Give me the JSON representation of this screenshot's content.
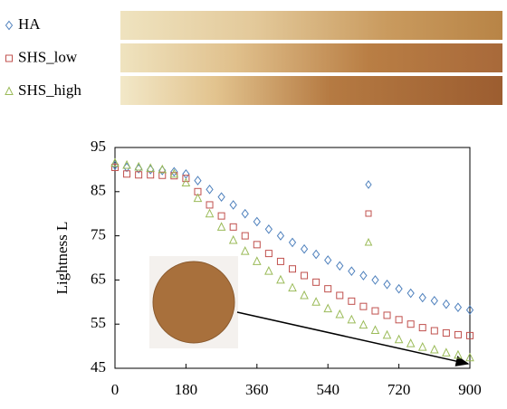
{
  "chart_data": {
    "type": "scatter",
    "x_label": null,
    "y_label": "Lightness L",
    "x": [
      0,
      30,
      60,
      90,
      120,
      150,
      180,
      210,
      240,
      270,
      300,
      330,
      360,
      390,
      420,
      450,
      480,
      510,
      540,
      570,
      600,
      630,
      660,
      690,
      720,
      750,
      780,
      810,
      840,
      870,
      900
    ],
    "xlim": [
      0,
      900
    ],
    "xticks": [
      0,
      180,
      360,
      540,
      720,
      900
    ],
    "ylim": [
      45,
      95
    ],
    "yticks": [
      45,
      55,
      65,
      75,
      85,
      95
    ],
    "series": [
      {
        "name": "HA",
        "color": "#4f81bd",
        "marker": "diamond",
        "values": [
          91,
          90.5,
          90.2,
          90,
          89.8,
          89.5,
          89,
          87.5,
          85.5,
          83.8,
          82,
          80,
          78.2,
          76.5,
          75,
          73.5,
          72,
          70.8,
          69.5,
          68.2,
          67,
          66,
          65,
          64,
          63,
          62,
          61,
          60.3,
          59.5,
          58.8,
          58.2
        ]
      },
      {
        "name": "SHS_low",
        "color": "#c0504d",
        "marker": "square",
        "values": [
          90.5,
          89,
          88.8,
          88.8,
          88.7,
          88.6,
          88,
          85,
          82,
          79.5,
          77,
          75,
          73,
          71,
          69.2,
          67.5,
          66,
          64.5,
          63,
          61.5,
          60.2,
          59,
          58,
          57,
          56,
          55,
          54.2,
          53.5,
          53,
          52.6,
          52.4
        ]
      },
      {
        "name": "SHS_high",
        "color": "#9bbb59",
        "marker": "triangle",
        "values": [
          91.5,
          91,
          90.6,
          90.3,
          90,
          89,
          87,
          83.5,
          80,
          77,
          74,
          71.5,
          69.2,
          67,
          65,
          63.2,
          61.5,
          60,
          58.5,
          57.2,
          56,
          54.8,
          53.6,
          52.5,
          51.5,
          50.6,
          49.8,
          49.2,
          48.5,
          48,
          47.4
        ]
      }
    ]
  }
}
